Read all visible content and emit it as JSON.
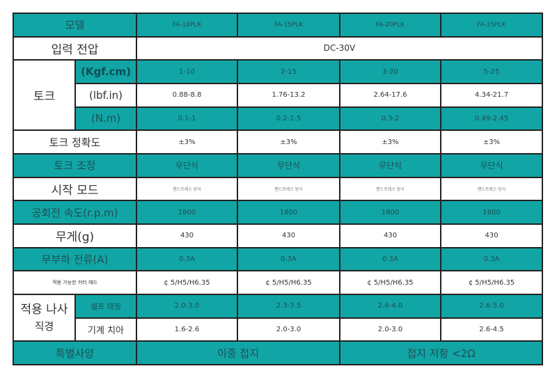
{
  "header": {
    "label": "모델",
    "models": [
      "FA-10PLK",
      "FA-15PLK",
      "FA-20PLK",
      "FA-25PLK"
    ]
  },
  "input_voltage": {
    "label": "입력 전압",
    "value": "DC-30V"
  },
  "torque": {
    "label": "토크",
    "rows": [
      {
        "unit": "(Kgf.cm)",
        "values": [
          "1-10",
          "2-15",
          "3-20",
          "5-25"
        ]
      },
      {
        "unit": "(lbf.in)",
        "values": [
          "0.88-8.8",
          "1.76-13.2",
          "2.64-17.6",
          "4.34-21.7"
        ]
      },
      {
        "unit": "(N.m)",
        "values": [
          "0.1-1",
          "0.2-1.5",
          "0.3-2",
          "0.49-2.45"
        ]
      }
    ]
  },
  "torque_accuracy": {
    "label": "토크 정확도",
    "values": [
      "±3%",
      "±3%",
      "±3%",
      "±3%"
    ]
  },
  "torque_adjust": {
    "label": "토크 조정",
    "values": [
      "무단식",
      "무단식",
      "무단식",
      "무단식"
    ]
  },
  "start_mode": {
    "label": "시작 모드",
    "values": [
      "핸드프레스 방식",
      "핸드프레스 방식",
      "핸드프레스 방식",
      "핸드프레스 방식"
    ]
  },
  "idle_speed": {
    "label": "공회전 속도(r.p.m)",
    "values": [
      "1800",
      "1800",
      "1800",
      "1800"
    ]
  },
  "weight": {
    "label": "무게(g)",
    "values": [
      "430",
      "430",
      "430",
      "430"
    ]
  },
  "no_load_current": {
    "label": "무부하 전류(A)",
    "values": [
      "0.3A",
      "0.3A",
      "0.3A",
      "0.3A"
    ]
  },
  "cutter_head": {
    "label": "적용 가능한 커터 헤드",
    "values": [
      "¢ 5/H5/H6.35",
      "¢ 5/H5/H6.35",
      "¢ 5/H5/H6.35",
      "¢ 5/H5/H6.35"
    ]
  },
  "screw": {
    "label_line1": "적용 나사",
    "label_line2": "직경",
    "rows": [
      {
        "type": "셀프 태핑",
        "values": [
          "2.0-3.0",
          "2.3-3.5",
          "2.6-4.0",
          "2.6-5.0"
        ]
      },
      {
        "type": "기계 치아",
        "values": [
          "1.6-2.6",
          "2.0-3.0",
          "2.0-3.0",
          "2.6-4.5"
        ]
      }
    ]
  },
  "special": {
    "label": "특별사양",
    "values": [
      "이중 접지",
      "접지 저항 <2Ω"
    ]
  },
  "colors": {
    "teal": "#12a5a5",
    "border": "#222222"
  }
}
